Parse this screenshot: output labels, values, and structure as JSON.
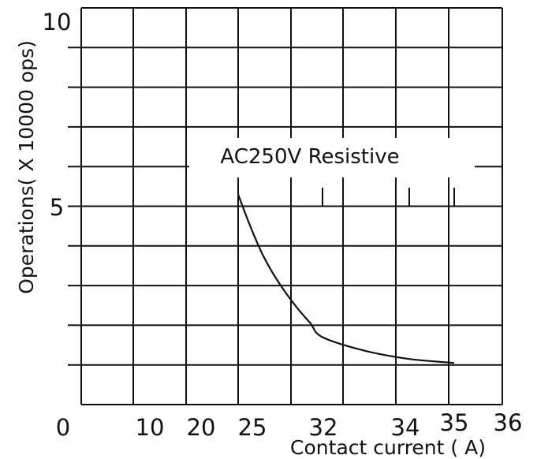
{
  "chart_data": {
    "type": "line",
    "title": "",
    "xlabel": "Contact current ( A)",
    "ylabel": "Operations( X 10000 ops)",
    "x_tick_labels": [
      "0",
      "10",
      "20",
      "25",
      "32",
      "34",
      "35",
      "36"
    ],
    "y_tick_labels": [
      "5",
      "10"
    ],
    "ylim": [
      0,
      10
    ],
    "grid": true,
    "annotation": "AC250V Resistive",
    "series": [
      {
        "x": [
          25,
          26,
          27,
          28,
          29,
          30,
          31,
          32,
          33,
          34,
          35
        ],
        "y": [
          5.3,
          4.5,
          3.8,
          3.25,
          2.8,
          2.4,
          2.05,
          1.7,
          1.35,
          1.15,
          1.05
        ]
      }
    ]
  }
}
